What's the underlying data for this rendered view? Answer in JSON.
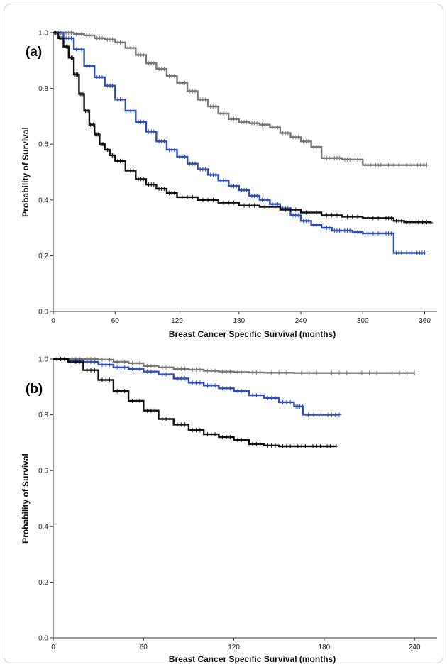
{
  "chart_data": [
    {
      "type": "line",
      "panel_label": "(a)",
      "xlabel": "Breast Cancer Specific Survival (months)",
      "ylabel": "Probability of Survival",
      "xlim": [
        0,
        372
      ],
      "ylim": [
        0.0,
        1.0
      ],
      "x_ticks": [
        0,
        60,
        120,
        180,
        240,
        300,
        360
      ],
      "y_ticks": [
        "0.0",
        "0.2",
        "0.4",
        "0.6",
        "0.8",
        "1.0"
      ],
      "grid": false,
      "step": true,
      "series": [
        {
          "color": "#777777",
          "points": [
            [
              0,
              1.0
            ],
            [
              10,
              1.0
            ],
            [
              20,
              0.995
            ],
            [
              30,
              0.99
            ],
            [
              40,
              0.98
            ],
            [
              50,
              0.975
            ],
            [
              60,
              0.965
            ],
            [
              70,
              0.945
            ],
            [
              80,
              0.92
            ],
            [
              90,
              0.89
            ],
            [
              100,
              0.87
            ],
            [
              110,
              0.845
            ],
            [
              120,
              0.82
            ],
            [
              130,
              0.79
            ],
            [
              140,
              0.76
            ],
            [
              150,
              0.735
            ],
            [
              160,
              0.71
            ],
            [
              170,
              0.69
            ],
            [
              180,
              0.68
            ],
            [
              190,
              0.675
            ],
            [
              200,
              0.67
            ],
            [
              210,
              0.66
            ],
            [
              220,
              0.64
            ],
            [
              230,
              0.625
            ],
            [
              240,
              0.61
            ],
            [
              250,
              0.59
            ],
            [
              260,
              0.55
            ],
            [
              270,
              0.55
            ],
            [
              280,
              0.545
            ],
            [
              290,
              0.545
            ],
            [
              300,
              0.525
            ],
            [
              310,
              0.525
            ],
            [
              320,
              0.525
            ],
            [
              340,
              0.525
            ],
            [
              350,
              0.525
            ],
            [
              362,
              0.525
            ]
          ]
        },
        {
          "color": "#2f4fb4",
          "points": [
            [
              0,
              1.0
            ],
            [
              10,
              0.98
            ],
            [
              20,
              0.94
            ],
            [
              30,
              0.88
            ],
            [
              40,
              0.84
            ],
            [
              50,
              0.81
            ],
            [
              60,
              0.76
            ],
            [
              70,
              0.72
            ],
            [
              80,
              0.68
            ],
            [
              90,
              0.645
            ],
            [
              100,
              0.61
            ],
            [
              110,
              0.58
            ],
            [
              120,
              0.555
            ],
            [
              130,
              0.53
            ],
            [
              140,
              0.51
            ],
            [
              150,
              0.49
            ],
            [
              160,
              0.47
            ],
            [
              170,
              0.45
            ],
            [
              180,
              0.435
            ],
            [
              190,
              0.415
            ],
            [
              200,
              0.4
            ],
            [
              210,
              0.385
            ],
            [
              220,
              0.37
            ],
            [
              230,
              0.345
            ],
            [
              240,
              0.325
            ],
            [
              250,
              0.31
            ],
            [
              260,
              0.3
            ],
            [
              270,
              0.29
            ],
            [
              280,
              0.29
            ],
            [
              290,
              0.285
            ],
            [
              300,
              0.28
            ],
            [
              320,
              0.28
            ],
            [
              330,
              0.21
            ],
            [
              340,
              0.21
            ],
            [
              350,
              0.21
            ],
            [
              360,
              0.21
            ]
          ]
        },
        {
          "color": "#111111",
          "points": [
            [
              0,
              1.0
            ],
            [
              5,
              0.98
            ],
            [
              10,
              0.95
            ],
            [
              15,
              0.91
            ],
            [
              20,
              0.85
            ],
            [
              25,
              0.78
            ],
            [
              30,
              0.72
            ],
            [
              35,
              0.67
            ],
            [
              40,
              0.635
            ],
            [
              45,
              0.6
            ],
            [
              50,
              0.58
            ],
            [
              55,
              0.56
            ],
            [
              60,
              0.54
            ],
            [
              70,
              0.505
            ],
            [
              80,
              0.475
            ],
            [
              90,
              0.455
            ],
            [
              100,
              0.44
            ],
            [
              110,
              0.425
            ],
            [
              120,
              0.41
            ],
            [
              140,
              0.4
            ],
            [
              160,
              0.39
            ],
            [
              180,
              0.38
            ],
            [
              200,
              0.375
            ],
            [
              220,
              0.365
            ],
            [
              240,
              0.355
            ],
            [
              260,
              0.345
            ],
            [
              280,
              0.34
            ],
            [
              300,
              0.335
            ],
            [
              320,
              0.335
            ],
            [
              330,
              0.325
            ],
            [
              340,
              0.32
            ],
            [
              350,
              0.32
            ],
            [
              366,
              0.318
            ]
          ]
        }
      ]
    },
    {
      "type": "line",
      "panel_label": "(b)",
      "xlabel": "Breast Cancer Specific Survival (months)",
      "ylabel": "Probability of Survival",
      "xlim": [
        0,
        255
      ],
      "ylim": [
        0.0,
        1.0
      ],
      "x_ticks": [
        0,
        60,
        120,
        180,
        240
      ],
      "y_ticks": [
        "0.0",
        "0.2",
        "0.4",
        "0.6",
        "0.8",
        "1.0"
      ],
      "grid": false,
      "step": true,
      "series": [
        {
          "color": "#777777",
          "points": [
            [
              0,
              1.0
            ],
            [
              10,
              1.0
            ],
            [
              20,
              1.0
            ],
            [
              30,
              0.998
            ],
            [
              40,
              0.99
            ],
            [
              50,
              0.985
            ],
            [
              60,
              0.975
            ],
            [
              70,
              0.97
            ],
            [
              80,
              0.965
            ],
            [
              90,
              0.962
            ],
            [
              100,
              0.958
            ],
            [
              110,
              0.955
            ],
            [
              120,
              0.953
            ],
            [
              130,
              0.952
            ],
            [
              140,
              0.951
            ],
            [
              160,
              0.95
            ],
            [
              180,
              0.95
            ],
            [
              200,
              0.95
            ],
            [
              220,
              0.95
            ],
            [
              240,
              0.95
            ]
          ]
        },
        {
          "color": "#2f4fb4",
          "points": [
            [
              0,
              1.0
            ],
            [
              10,
              0.995
            ],
            [
              20,
              0.99
            ],
            [
              30,
              0.98
            ],
            [
              40,
              0.97
            ],
            [
              50,
              0.965
            ],
            [
              60,
              0.955
            ],
            [
              70,
              0.945
            ],
            [
              80,
              0.93
            ],
            [
              90,
              0.915
            ],
            [
              100,
              0.905
            ],
            [
              110,
              0.895
            ],
            [
              120,
              0.885
            ],
            [
              130,
              0.87
            ],
            [
              140,
              0.86
            ],
            [
              150,
              0.845
            ],
            [
              160,
              0.83
            ],
            [
              165,
              0.83
            ],
            [
              166,
              0.8
            ],
            [
              180,
              0.8
            ],
            [
              190,
              0.8
            ]
          ]
        },
        {
          "color": "#111111",
          "points": [
            [
              0,
              1.0
            ],
            [
              10,
              0.99
            ],
            [
              20,
              0.96
            ],
            [
              30,
              0.925
            ],
            [
              40,
              0.885
            ],
            [
              50,
              0.85
            ],
            [
              60,
              0.815
            ],
            [
              70,
              0.785
            ],
            [
              80,
              0.765
            ],
            [
              90,
              0.745
            ],
            [
              100,
              0.73
            ],
            [
              110,
              0.72
            ],
            [
              120,
              0.71
            ],
            [
              130,
              0.695
            ],
            [
              140,
              0.69
            ],
            [
              150,
              0.687
            ],
            [
              160,
              0.687
            ],
            [
              170,
              0.687
            ],
            [
              180,
              0.687
            ],
            [
              188,
              0.687
            ]
          ]
        }
      ]
    }
  ]
}
